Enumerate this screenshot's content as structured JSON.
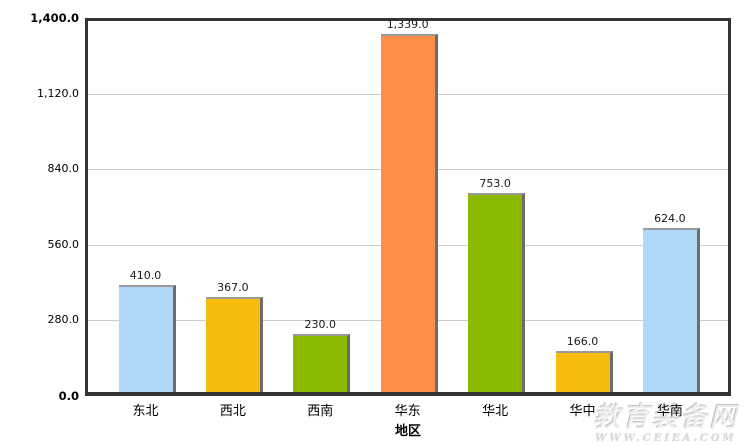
{
  "chart_data": {
    "type": "bar",
    "title": "",
    "xlabel": "地区",
    "ylabel": "",
    "categories": [
      "东北",
      "西北",
      "西南",
      "华东",
      "华北",
      "华中",
      "华南"
    ],
    "values": [
      410.0,
      367.0,
      230.0,
      1339.0,
      753.0,
      166.0,
      624.0
    ],
    "value_labels": [
      "410.0",
      "367.0",
      "230.0",
      "1,339.0",
      "753.0",
      "166.0",
      "624.0"
    ],
    "bar_colors": [
      "#AFD8F8",
      "#F6BD0F",
      "#8BBA00",
      "#FF8E46",
      "#8BBA00",
      "#F6BD0F",
      "#AFD8F8"
    ],
    "ylim": [
      0,
      1400
    ],
    "ytick_values": [
      1400,
      1120,
      840,
      560,
      280,
      0
    ],
    "ytick_labels": [
      "1,400.0",
      "1,120.0",
      "840.0",
      "560.0",
      "280.0",
      "0.0"
    ],
    "grid": true,
    "legend_position": "none"
  },
  "watermark": {
    "site_name": "教育装备网",
    "site_url": "WWW.CEIEA.COM"
  },
  "colors": {
    "grid": "#cccccc",
    "axis_border": "#333333",
    "bar_shadow": "#6c6c6c",
    "bar_top_edge": "#9a9a9a",
    "text": "#000000"
  }
}
